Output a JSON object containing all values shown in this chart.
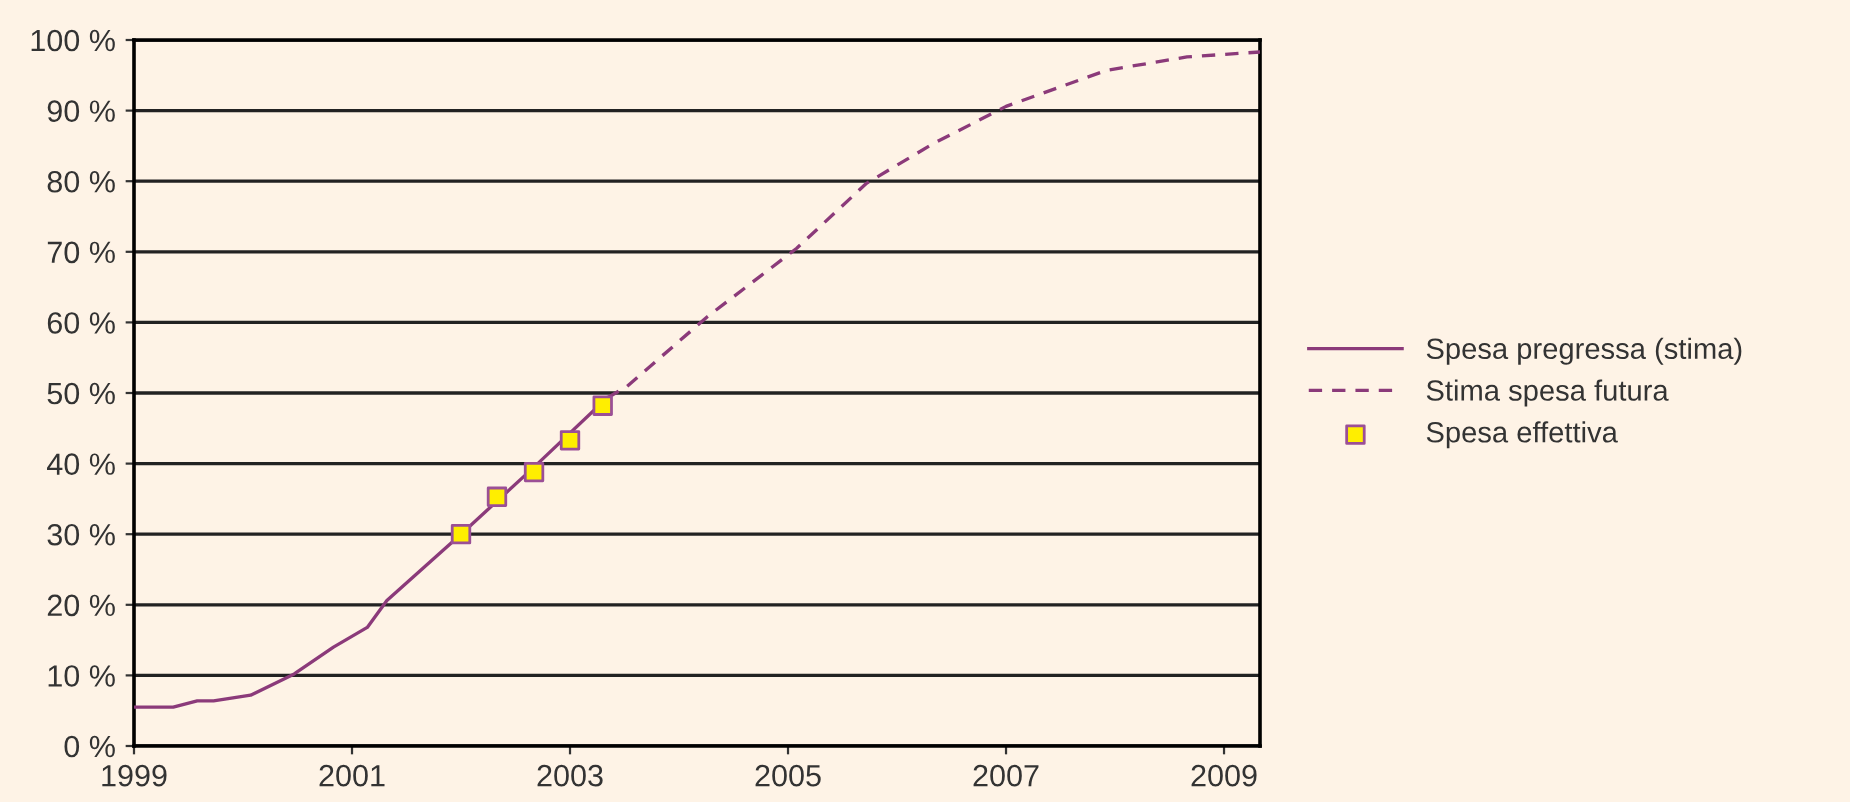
{
  "chart_data": {
    "type": "line",
    "xlim": [
      1999,
      2009.33
    ],
    "xticks": [
      1999,
      2001,
      2003,
      2005,
      2007,
      2009
    ],
    "ylim": [
      0,
      100
    ],
    "yticks": [
      {
        "value": 0,
        "label": "0 %"
      },
      {
        "value": 10,
        "label": "10 %"
      },
      {
        "value": 20,
        "label": "20 %"
      },
      {
        "value": 30,
        "label": "30 %"
      },
      {
        "value": 40,
        "label": "40 %"
      },
      {
        "value": 50,
        "label": "50 %"
      },
      {
        "value": 60,
        "label": "60 %"
      },
      {
        "value": 70,
        "label": "70 %"
      },
      {
        "value": 80,
        "label": "80 %"
      },
      {
        "value": 90,
        "label": "90 %"
      },
      {
        "value": 100,
        "label": "100 %"
      }
    ],
    "grid": "y",
    "legend": "right",
    "series": [
      {
        "name": "Spesa pregressa (stima)",
        "line_style": "solid",
        "color": "#8b3a7a",
        "x": [
          1999,
          1999.36,
          1999.58,
          1999.73,
          2000.07,
          2000.47,
          2000.83,
          2001.14,
          2001.32,
          2002.0,
          2002.67,
          2003.34
        ],
        "values": [
          5.5,
          5.5,
          6.4,
          6.4,
          7.2,
          10.2,
          14,
          16.8,
          20.6,
          30,
          39.5,
          49.3
        ]
      },
      {
        "name": "Stima spesa futura",
        "line_style": "dashed",
        "color": "#8b3a7a",
        "x": [
          2003.34,
          2003.52,
          2004.26,
          2005.08,
          2005.72,
          2006.33,
          2007.0,
          2007.92,
          2008.66,
          2009.33
        ],
        "values": [
          49.3,
          50.9,
          60.8,
          70.5,
          79.7,
          85.3,
          90.6,
          95.7,
          97.6,
          98.3
        ]
      },
      {
        "name": "Spesa effettiva",
        "type": "scatter",
        "marker": "square",
        "color": "#ffee00",
        "x": [
          2002.0,
          2002.33,
          2002.67,
          2003.0,
          2003.3
        ],
        "values": [
          30,
          35.3,
          38.8,
          43.3,
          48.2
        ]
      }
    ]
  }
}
